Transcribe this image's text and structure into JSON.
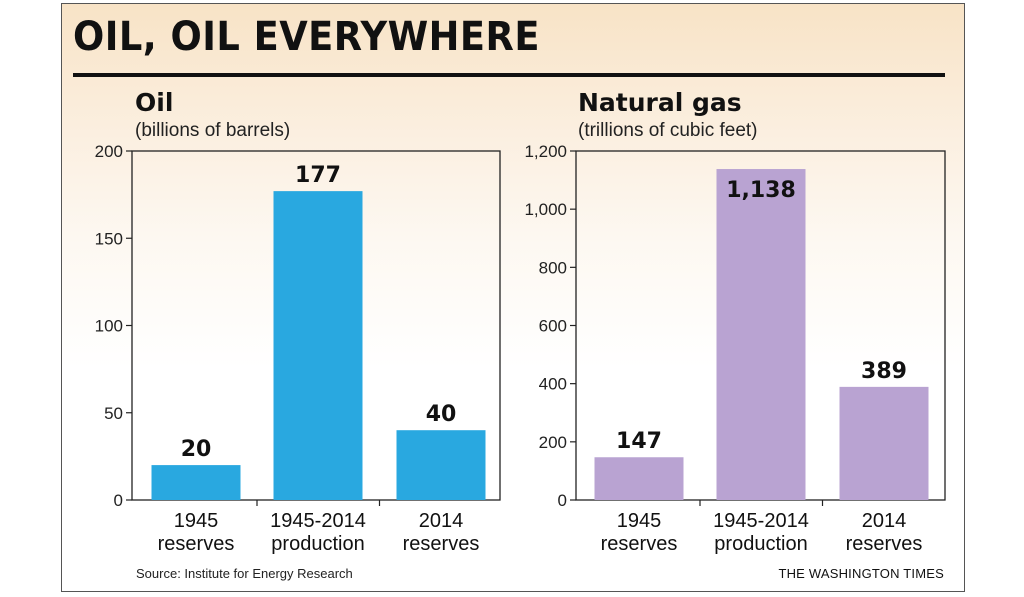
{
  "title": "OIL, OIL EVERYWHERE",
  "source": "Source: Institute for Energy Research",
  "credit": "THE WASHINGTON TIMES",
  "colors": {
    "oil_bar": "#29a8e0",
    "gas_bar": "#b9a3d2",
    "frame": "#222222"
  },
  "chart_data": [
    {
      "type": "bar",
      "title": "Oil",
      "subtitle": "(billions of barrels)",
      "categories": [
        [
          "1945",
          "reserves"
        ],
        [
          "1945-2014",
          "production"
        ],
        [
          "2014",
          "reserves"
        ]
      ],
      "values": [
        20,
        177,
        40
      ],
      "value_labels": [
        "20",
        "177",
        "40"
      ],
      "ylim": [
        0,
        200
      ],
      "yticks": [
        0,
        50,
        100,
        150,
        200
      ],
      "ytick_labels": [
        "0",
        "50",
        "100",
        "150",
        "200"
      ],
      "color": "#29a8e0",
      "grid": false
    },
    {
      "type": "bar",
      "title": "Natural gas",
      "subtitle": "(trillions of cubic feet)",
      "categories": [
        [
          "1945",
          "reserves"
        ],
        [
          "1945-2014",
          "production"
        ],
        [
          "2014",
          "reserves"
        ]
      ],
      "values": [
        147,
        1138,
        389
      ],
      "value_labels": [
        "147",
        "1,138",
        "389"
      ],
      "ylim": [
        0,
        1200
      ],
      "yticks": [
        0,
        200,
        400,
        600,
        800,
        1000,
        1200
      ],
      "ytick_labels": [
        "0",
        "200",
        "400",
        "600",
        "800",
        "1,000",
        "1,200"
      ],
      "color": "#b9a3d2",
      "grid": false
    }
  ]
}
